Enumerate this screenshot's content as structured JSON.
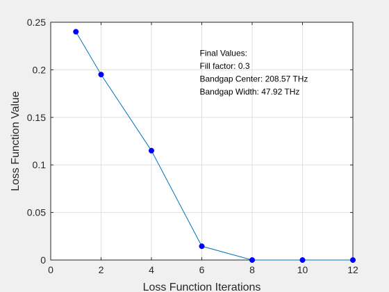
{
  "chart_data": {
    "type": "line",
    "title": "",
    "xlabel": "Loss Function Iterations",
    "ylabel": "Loss Function Value",
    "xlim": [
      0,
      12
    ],
    "ylim": [
      0,
      0.25
    ],
    "xticks": [
      0,
      2,
      4,
      6,
      8,
      10,
      12
    ],
    "xtick_labels": [
      "0",
      "2",
      "4",
      "6",
      "8",
      "10",
      "12"
    ],
    "yticks": [
      0,
      0.05,
      0.1,
      0.15,
      0.2,
      0.25
    ],
    "ytick_labels": [
      "0",
      "0.05",
      "0.1",
      "0.15",
      "0.2",
      "0.25"
    ],
    "grid": true,
    "legend": null,
    "series": [
      {
        "x": [
          1,
          2,
          4,
          6,
          8,
          10,
          12
        ],
        "y": [
          0.24,
          0.195,
          0.115,
          0.0145,
          0.0,
          0.0,
          0.0
        ],
        "line_color": "#0072bd",
        "marker": "circle",
        "marker_color": "#0000ff"
      }
    ],
    "annotation": {
      "lines": [
        "Final Values:",
        "Fill factor: 0.3",
        "Bandgap Center: 208.57 THz",
        "Bandgap Width: 47.92 THz"
      ],
      "anchor": {
        "x": 6,
        "y": 0.2
      }
    }
  },
  "colors": {
    "figure_background": "#f0f0f0",
    "axes_background": "#ffffff",
    "grid": "#dfdfdf",
    "axis": "#262626"
  }
}
